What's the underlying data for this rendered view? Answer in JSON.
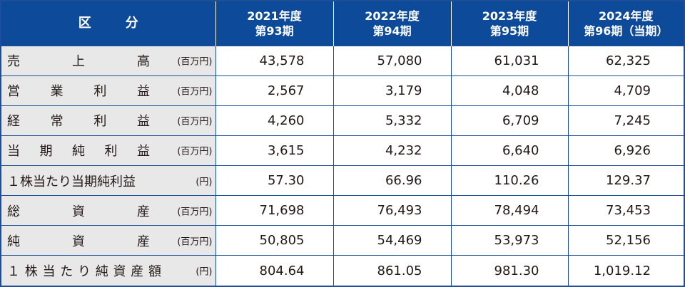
{
  "header": {
    "category_chars": [
      "区",
      "分"
    ],
    "periods": [
      {
        "year": "2021年度",
        "term": "第93期"
      },
      {
        "year": "2022年度",
        "term": "第94期"
      },
      {
        "year": "2023年度",
        "term": "第95期"
      },
      {
        "year": "2024年度",
        "term": "第96期（当期）"
      }
    ]
  },
  "rows": [
    {
      "chars": [
        "売",
        "上",
        "高"
      ],
      "unit": "(百万円)",
      "values": [
        "43,578",
        "57,080",
        "61,031",
        "62,325"
      ]
    },
    {
      "chars": [
        "営",
        "業",
        "利",
        "益"
      ],
      "unit": "(百万円)",
      "values": [
        "2,567",
        "3,179",
        "4,048",
        "4,709"
      ]
    },
    {
      "chars": [
        "経",
        "常",
        "利",
        "益"
      ],
      "unit": "(百万円)",
      "values": [
        "4,260",
        "5,332",
        "6,709",
        "7,245"
      ]
    },
    {
      "chars": [
        "当",
        "期",
        "純",
        "利",
        "益"
      ],
      "unit": "(百万円)",
      "values": [
        "3,615",
        "4,232",
        "6,640",
        "6,926"
      ]
    },
    {
      "chars": [
        "１株当たり当期純利益"
      ],
      "unit": "(円)",
      "values": [
        "57.30",
        "66.96",
        "110.26",
        "129.37"
      ]
    },
    {
      "chars": [
        "総",
        "資",
        "産"
      ],
      "unit": "(百万円)",
      "values": [
        "71,698",
        "76,493",
        "78,494",
        "73,453"
      ]
    },
    {
      "chars": [
        "純",
        "資",
        "産"
      ],
      "unit": "(百万円)",
      "values": [
        "50,805",
        "54,469",
        "53,973",
        "52,156"
      ]
    },
    {
      "chars": [
        "１",
        "株",
        "当",
        "た",
        "り",
        "純",
        "資",
        "産",
        "額"
      ],
      "unit": "(円)",
      "values": [
        "804.64",
        "861.05",
        "981.30",
        "1,019.12"
      ]
    }
  ]
}
